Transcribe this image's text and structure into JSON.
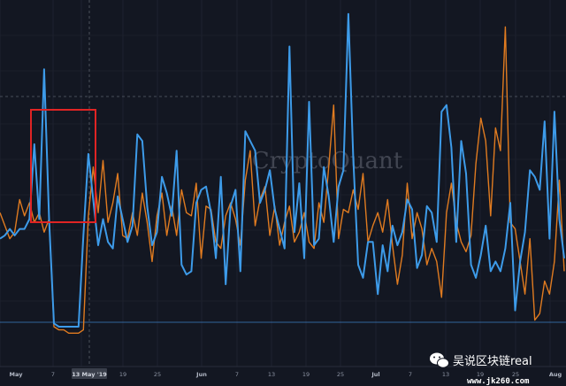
{
  "chart_data": {
    "type": "line",
    "title": "",
    "xlabel": "",
    "ylabel": "",
    "grid": true,
    "x_ticks": [
      "May",
      "7",
      "13",
      "19",
      "25",
      "Jun",
      "7",
      "13",
      "19",
      "25",
      "Jul",
      "7",
      "13",
      "19",
      "25",
      "Aug"
    ],
    "cursor_label": "13 May '19",
    "colors": {
      "blue": "#3d9be9",
      "orange": "#e07b20",
      "highlight": "#e02424",
      "background": "#131722"
    },
    "series": [
      {
        "color": "#3d9be9",
        "values": [
          0.7,
          0.69,
          0.67,
          0.69,
          0.67,
          0.67,
          0.64,
          0.41,
          0.64,
          0.18,
          0.64,
          0.96,
          0.97,
          0.97,
          0.97,
          0.97,
          0.97,
          0.69,
          0.44,
          0.58,
          0.72,
          0.64,
          0.71,
          0.73,
          0.57,
          0.64,
          0.71,
          0.66,
          0.38,
          0.4,
          0.6,
          0.72,
          0.68,
          0.51,
          0.56,
          0.63,
          0.43,
          0.78,
          0.81,
          0.8,
          0.59,
          0.55,
          0.54,
          0.62,
          0.76,
          0.51,
          0.84,
          0.6,
          0.55,
          0.8,
          0.37,
          0.4,
          0.43,
          0.59,
          0.55,
          0.49,
          0.61,
          0.67,
          0.73,
          0.11,
          0.68,
          0.53,
          0.76,
          0.28,
          0.72,
          0.7,
          0.48,
          0.57,
          0.71,
          0.54,
          0.49,
          0.01,
          0.45,
          0.78,
          0.82,
          0.71,
          0.71,
          0.87,
          0.72,
          0.8,
          0.66,
          0.72,
          0.68,
          0.58,
          0.61,
          0.79,
          0.75,
          0.6,
          0.62,
          0.71,
          0.31,
          0.29,
          0.42,
          0.71,
          0.4,
          0.5,
          0.78,
          0.82,
          0.75,
          0.66,
          0.8,
          0.77,
          0.8,
          0.73,
          0.59,
          0.92,
          0.77,
          0.68,
          0.49,
          0.51,
          0.55,
          0.34,
          0.7,
          0.31,
          0.64,
          0.76
        ]
      },
      {
        "color": "#e07b20",
        "values": [
          0.62,
          0.66,
          0.7,
          0.68,
          0.58,
          0.63,
          0.59,
          0.65,
          0.62,
          0.68,
          0.64,
          0.97,
          0.98,
          0.98,
          0.99,
          0.99,
          0.99,
          0.98,
          0.63,
          0.48,
          0.62,
          0.46,
          0.65,
          0.59,
          0.5,
          0.69,
          0.7,
          0.62,
          0.69,
          0.56,
          0.65,
          0.77,
          0.63,
          0.56,
          0.69,
          0.6,
          0.69,
          0.55,
          0.62,
          0.63,
          0.53,
          0.76,
          0.6,
          0.61,
          0.71,
          0.73,
          0.63,
          0.59,
          0.64,
          0.72,
          0.52,
          0.43,
          0.66,
          0.58,
          0.54,
          0.69,
          0.6,
          0.72,
          0.65,
          0.6,
          0.71,
          0.68,
          0.62,
          0.71,
          0.73,
          0.59,
          0.65,
          0.48,
          0.29,
          0.7,
          0.61,
          0.62,
          0.55,
          0.61,
          0.5,
          0.71,
          0.66,
          0.62,
          0.68,
          0.58,
          0.72,
          0.84,
          0.75,
          0.53,
          0.7,
          0.62,
          0.67,
          0.78,
          0.73,
          0.77,
          0.88,
          0.62,
          0.53,
          0.65,
          0.71,
          0.74,
          0.69,
          0.47,
          0.33,
          0.4,
          0.63,
          0.36,
          0.43,
          0.05,
          0.65,
          0.67,
          0.77,
          0.87,
          0.7,
          0.95,
          0.93,
          0.83,
          0.87,
          0.77,
          0.52,
          0.8
        ]
      }
    ]
  },
  "watermark": "CryptoQuant",
  "wechat_badge": {
    "icon": "wechat-icon",
    "text": "吴说区块链real",
    "subtext": "www.jk260.com"
  }
}
